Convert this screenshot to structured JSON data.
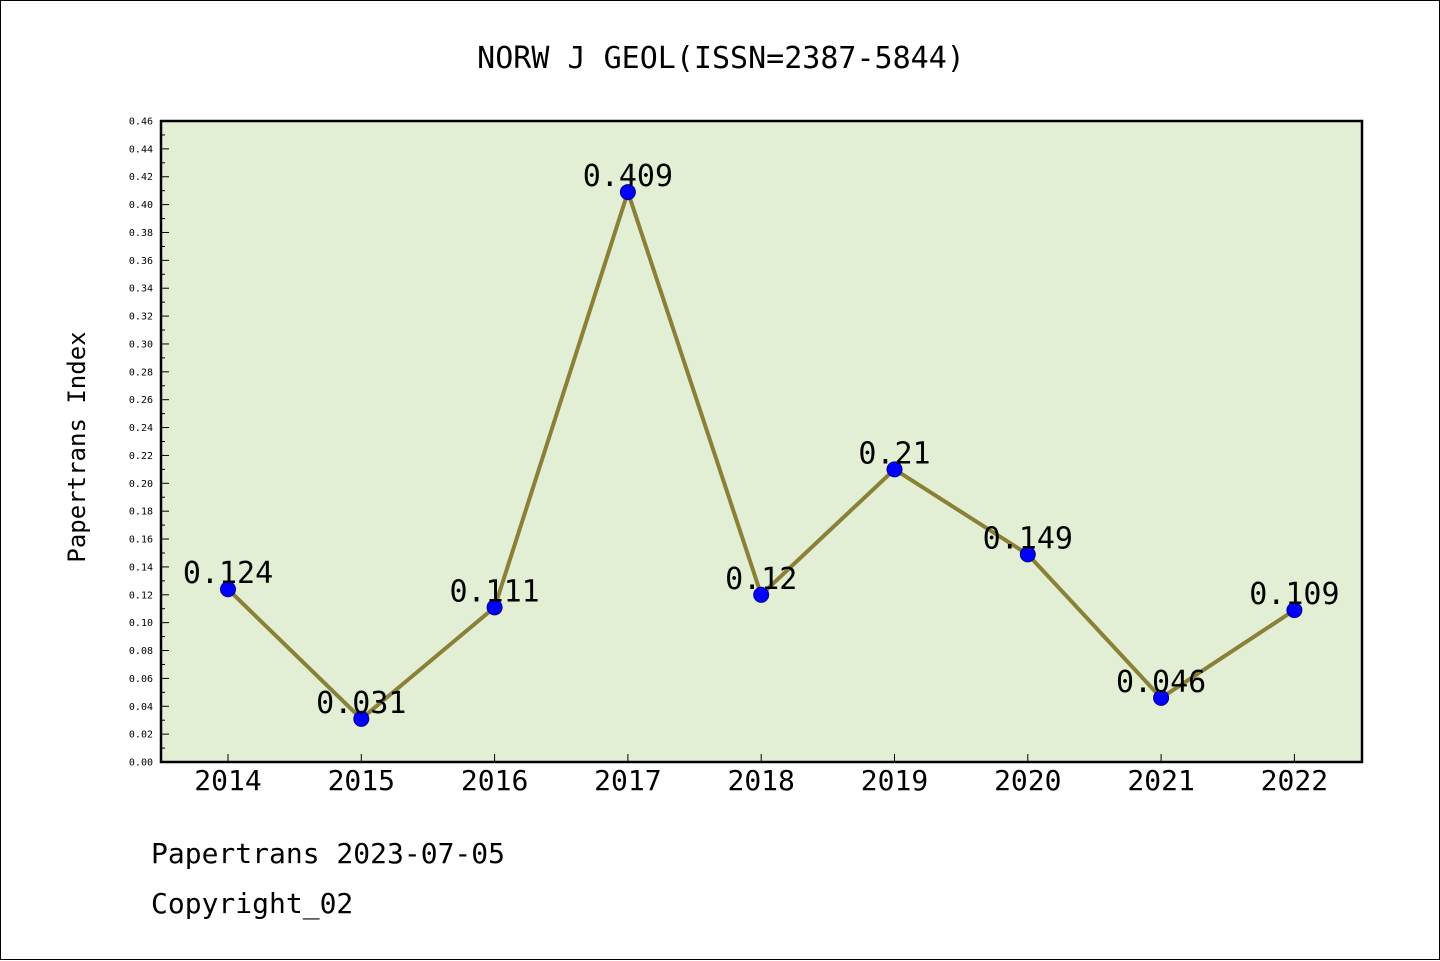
{
  "chart_data": {
    "type": "line",
    "title": "NORW J GEOL(ISSN=2387-5844)",
    "xlabel": "",
    "ylabel": "Papertrans Index",
    "categories": [
      "2014",
      "2015",
      "2016",
      "2017",
      "2018",
      "2019",
      "2020",
      "2021",
      "2022"
    ],
    "series": [
      {
        "values": [
          0.124,
          0.031,
          0.111,
          0.409,
          0.12,
          0.21,
          0.149,
          0.046,
          0.109
        ],
        "labels": [
          "0.124",
          "0.031",
          "0.111",
          "0.409",
          "0.12",
          "0.21",
          "0.149",
          "0.046",
          "0.109"
        ],
        "line_color": "#8B8037",
        "marker_color": "#0000FF"
      }
    ],
    "ylim": [
      0,
      0.46
    ],
    "ytick_step": 0.02,
    "yticks": [
      "0.00",
      "0.02",
      "0.04",
      "0.06",
      "0.08",
      "0.10",
      "0.12",
      "0.14",
      "0.16",
      "0.18",
      "0.20",
      "0.22",
      "0.24",
      "0.26",
      "0.28",
      "0.30",
      "0.32",
      "0.34",
      "0.36",
      "0.38",
      "0.40",
      "0.42",
      "0.44",
      "0.46"
    ],
    "plot_background": "#E2EFD5",
    "grid": false,
    "legend": "none"
  },
  "footer": {
    "line1": "Papertrans 2023-07-05",
    "line2": "Copyright_02"
  }
}
